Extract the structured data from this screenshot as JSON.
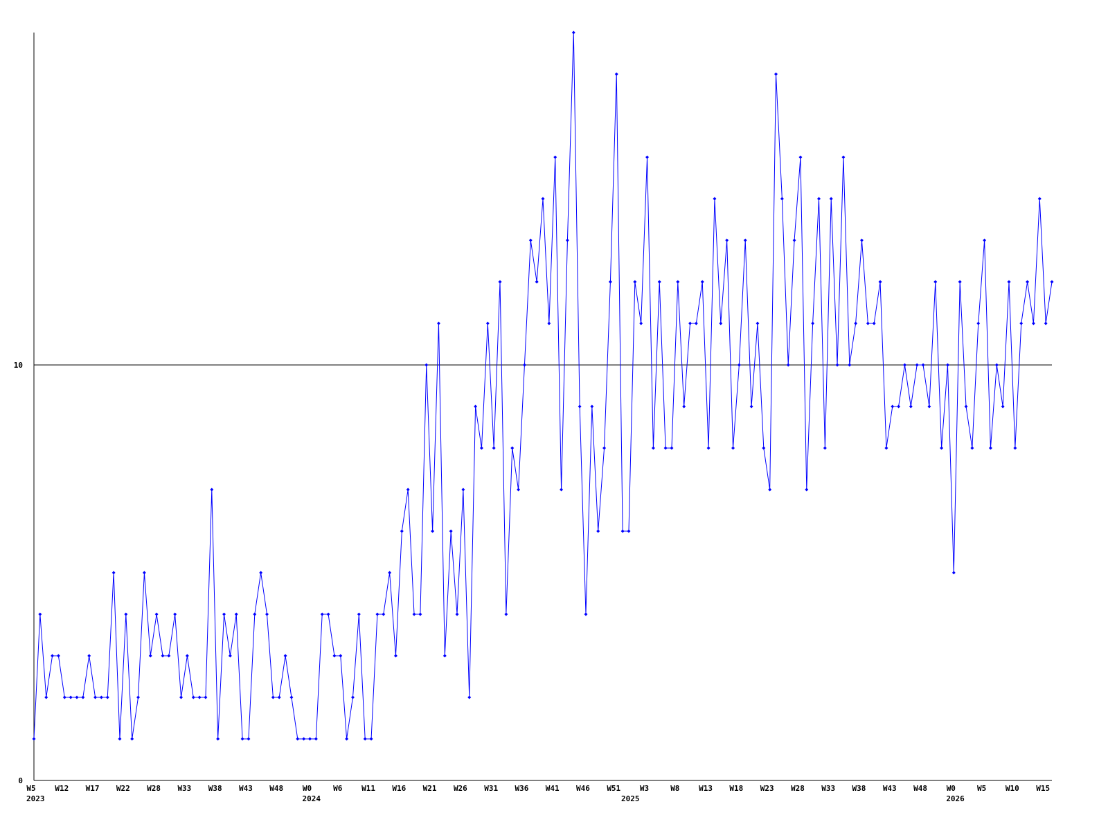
{
  "chart_data": {
    "type": "line",
    "categories": [
      "W5",
      null,
      null,
      null,
      null,
      "W12",
      null,
      null,
      null,
      null,
      "W17",
      null,
      null,
      null,
      null,
      "W22",
      null,
      null,
      null,
      null,
      "W28",
      null,
      null,
      null,
      null,
      "W33",
      null,
      null,
      null,
      null,
      "W38",
      null,
      null,
      null,
      null,
      "W43",
      null,
      null,
      null,
      null,
      "W48",
      null,
      null,
      null,
      null,
      "W0",
      null,
      null,
      null,
      null,
      "W6",
      null,
      null,
      null,
      null,
      "W11",
      null,
      null,
      null,
      null,
      "W16",
      null,
      null,
      null,
      null,
      "W21",
      null,
      null,
      null,
      null,
      "W26",
      null,
      null,
      null,
      null,
      "W31",
      null,
      null,
      null,
      null,
      "W36",
      null,
      null,
      null,
      null,
      "W41",
      null,
      null,
      null,
      null,
      "W46",
      null,
      null,
      null,
      null,
      "W51",
      null,
      null,
      null,
      null,
      "W3",
      null,
      null,
      null,
      null,
      "W8",
      null,
      null,
      null,
      null,
      "W13",
      null,
      null,
      null,
      null,
      "W18",
      null,
      null,
      null,
      null,
      "W23",
      null,
      null,
      null,
      null,
      "W28",
      null,
      null,
      null,
      null,
      "W33",
      null,
      null,
      null,
      null,
      "W38",
      null,
      null,
      null,
      null,
      "W43",
      null,
      null,
      null,
      null,
      "W48",
      null,
      null,
      null,
      null,
      "W0",
      null,
      null,
      null,
      null,
      "W5",
      null,
      null,
      null,
      null,
      "W10",
      null,
      null,
      null,
      null,
      "W15",
      null
    ],
    "category_years": [
      "2023",
      null,
      null,
      null,
      null,
      null,
      null,
      null,
      null,
      null,
      null,
      null,
      null,
      null,
      null,
      null,
      null,
      null,
      null,
      null,
      null,
      null,
      null,
      null,
      null,
      null,
      null,
      null,
      null,
      null,
      null,
      null,
      null,
      null,
      null,
      null,
      null,
      null,
      null,
      null,
      null,
      null,
      null,
      null,
      null,
      "2024",
      null,
      null,
      null,
      null,
      null,
      null,
      null,
      null,
      null,
      null,
      null,
      null,
      null,
      null,
      null,
      null,
      null,
      null,
      null,
      null,
      null,
      null,
      null,
      null,
      null,
      null,
      null,
      null,
      null,
      null,
      null,
      null,
      null,
      null,
      null,
      null,
      null,
      null,
      null,
      null,
      null,
      null,
      null,
      null,
      null,
      null,
      null,
      null,
      null,
      null,
      null,
      "2025",
      null,
      null,
      null,
      null,
      null,
      null,
      null,
      null,
      null,
      null,
      null,
      null,
      null,
      null,
      null,
      null,
      null,
      null,
      null,
      null,
      null,
      null,
      null,
      null,
      null,
      null,
      null,
      null,
      null,
      null,
      null,
      null,
      null,
      null,
      null,
      null,
      null,
      null,
      null,
      null,
      null,
      null,
      null,
      null,
      null,
      null,
      null,
      null,
      null,
      null,
      null,
      null,
      "2026",
      null,
      null,
      null,
      null,
      null,
      null,
      null,
      null,
      null,
      null,
      null,
      null,
      null,
      null,
      null,
      null
    ],
    "series": [
      {
        "color": "#0000ff",
        "values": [
          1,
          4,
          2,
          3,
          3,
          2,
          2,
          2,
          2,
          3,
          2,
          2,
          2,
          5,
          1,
          4,
          1,
          2,
          5,
          3,
          4,
          3,
          3,
          4,
          2,
          3,
          2,
          2,
          2,
          7,
          1,
          4,
          3,
          4,
          1,
          1,
          4,
          5,
          4,
          2,
          2,
          3,
          2,
          1,
          1,
          1,
          1,
          4,
          4,
          3,
          3,
          1,
          2,
          4,
          1,
          1,
          4,
          4,
          5,
          3,
          6,
          7,
          4,
          4,
          10,
          6,
          11,
          3,
          6,
          4,
          7,
          2,
          9,
          8,
          11,
          8,
          12,
          4,
          8,
          7,
          10,
          13,
          12,
          14,
          11,
          15,
          7,
          13,
          18,
          9,
          4,
          9,
          6,
          8,
          12,
          17,
          6,
          6,
          12,
          11,
          15,
          8,
          12,
          8,
          8,
          12,
          9,
          11,
          11,
          12,
          8,
          14,
          11,
          13,
          8,
          10,
          13,
          9,
          11,
          8,
          7,
          17,
          14,
          10,
          13,
          15,
          7,
          11,
          14,
          8,
          14,
          10,
          15,
          10,
          11,
          13,
          11,
          11,
          12,
          8,
          9,
          9,
          10,
          9,
          10,
          10,
          9,
          12,
          8,
          10,
          5,
          12,
          9,
          8,
          11,
          13,
          8,
          10,
          9,
          12,
          8,
          11,
          12,
          11,
          14,
          11,
          12
        ]
      }
    ],
    "ylim": [
      0,
      18
    ],
    "yticks": [
      0,
      10
    ],
    "grid": true
  }
}
